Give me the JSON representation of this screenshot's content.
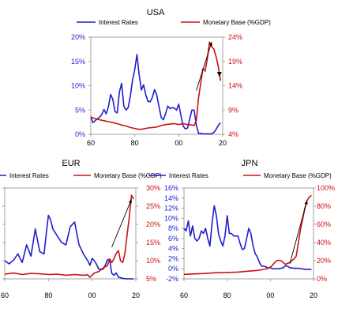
{
  "chart_data": [
    {
      "type": "line",
      "title": "USA",
      "legend_position": "top",
      "legend": [
        "Interest Rates",
        "Monetary Base (%GDP)"
      ],
      "x_ticks": [
        "60",
        "80",
        "00",
        "20"
      ],
      "x_range": [
        1960,
        2020
      ],
      "left_axis": {
        "ticks": [
          "0%",
          "5%",
          "10%",
          "15%",
          "20%"
        ],
        "range": [
          0,
          20
        ],
        "color": "#1f1fcc"
      },
      "right_axis": {
        "ticks": [
          "4%",
          "9%",
          "14%",
          "19%",
          "24%"
        ],
        "range": [
          4,
          24
        ],
        "color": "#cc1111"
      },
      "series": [
        {
          "name": "Interest Rates",
          "axis": "left",
          "color": "#1f1fcc",
          "points": [
            [
              1960,
              3.5
            ],
            [
              1961,
              2.4
            ],
            [
              1962,
              2.8
            ],
            [
              1963,
              3.2
            ],
            [
              1964,
              3.5
            ],
            [
              1965,
              4.1
            ],
            [
              1966,
              5.1
            ],
            [
              1967,
              4.2
            ],
            [
              1968,
              5.7
            ],
            [
              1969,
              8.2
            ],
            [
              1970,
              7.2
            ],
            [
              1971,
              4.7
            ],
            [
              1972,
              4.4
            ],
            [
              1973,
              8.7
            ],
            [
              1974,
              10.5
            ],
            [
              1975,
              5.8
            ],
            [
              1976,
              5.0
            ],
            [
              1977,
              5.5
            ],
            [
              1978,
              7.9
            ],
            [
              1979,
              11.2
            ],
            [
              1980,
              13.4
            ],
            [
              1981,
              16.4
            ],
            [
              1982,
              12.3
            ],
            [
              1983,
              9.1
            ],
            [
              1984,
              10.2
            ],
            [
              1985,
              8.1
            ],
            [
              1986,
              6.8
            ],
            [
              1987,
              6.7
            ],
            [
              1988,
              7.6
            ],
            [
              1989,
              9.2
            ],
            [
              1990,
              8.1
            ],
            [
              1991,
              5.7
            ],
            [
              1992,
              3.5
            ],
            [
              1993,
              3.0
            ],
            [
              1994,
              4.2
            ],
            [
              1995,
              5.8
            ],
            [
              1996,
              5.3
            ],
            [
              1997,
              5.5
            ],
            [
              1998,
              5.4
            ],
            [
              1999,
              5.0
            ],
            [
              2000,
              6.2
            ],
            [
              2001,
              3.9
            ],
            [
              2002,
              1.7
            ],
            [
              2003,
              1.1
            ],
            [
              2004,
              1.3
            ],
            [
              2005,
              3.2
            ],
            [
              2006,
              5.0
            ],
            [
              2007,
              5.0
            ],
            [
              2008,
              1.9
            ],
            [
              2009,
              0.2
            ],
            [
              2010,
              0.2
            ],
            [
              2011,
              0.1
            ],
            [
              2012,
              0.1
            ],
            [
              2013,
              0.1
            ],
            [
              2014,
              0.1
            ],
            [
              2015,
              0.1
            ],
            [
              2016,
              0.4
            ],
            [
              2017,
              1.0
            ],
            [
              2018,
              1.8
            ],
            [
              2019,
              2.4
            ]
          ]
        },
        {
          "name": "Monetary Base (%GDP)",
          "axis": "right",
          "color": "#cc1111",
          "points": [
            [
              1960,
              7.6
            ],
            [
              1962,
              7.2
            ],
            [
              1964,
              7.0
            ],
            [
              1966,
              6.8
            ],
            [
              1968,
              6.6
            ],
            [
              1970,
              6.4
            ],
            [
              1972,
              6.2
            ],
            [
              1974,
              5.9
            ],
            [
              1976,
              5.7
            ],
            [
              1978,
              5.4
            ],
            [
              1980,
              5.2
            ],
            [
              1982,
              5.0
            ],
            [
              1984,
              5.1
            ],
            [
              1986,
              5.3
            ],
            [
              1988,
              5.4
            ],
            [
              1990,
              5.5
            ],
            [
              1992,
              5.8
            ],
            [
              1994,
              6.0
            ],
            [
              1996,
              6.1
            ],
            [
              1998,
              6.2
            ],
            [
              2000,
              6.0
            ],
            [
              2002,
              6.2
            ],
            [
              2004,
              6.0
            ],
            [
              2006,
              5.9
            ],
            [
              2007,
              5.8
            ],
            [
              2008,
              6.8
            ],
            [
              2009,
              11.5
            ],
            [
              2010,
              14.5
            ],
            [
              2011,
              17.5
            ],
            [
              2012,
              17.0
            ],
            [
              2013,
              19.5
            ],
            [
              2014,
              23.0
            ],
            [
              2015,
              22.0
            ],
            [
              2016,
              21.5
            ],
            [
              2017,
              20.0
            ],
            [
              2018,
              18.0
            ],
            [
              2019,
              15.0
            ]
          ]
        }
      ]
    },
    {
      "type": "line",
      "title": "EUR",
      "legend_position": "top",
      "legend": [
        "Interest Rates",
        "Monetary Base (%GDP)"
      ],
      "x_ticks": [
        "60",
        "80",
        "00",
        "20"
      ],
      "x_range": [
        1960,
        2020
      ],
      "left_axis": {
        "ticks": [],
        "range": [
          0,
          20
        ],
        "color": "#1f1fcc"
      },
      "right_axis": {
        "ticks": [
          "5%",
          "10%",
          "15%",
          "20%",
          "25%",
          "30%"
        ],
        "range": [
          5,
          30
        ],
        "color": "#cc1111"
      },
      "series": [
        {
          "name": "Interest Rates",
          "axis": "left",
          "color": "#1f1fcc",
          "points": [
            [
              1960,
              4.0
            ],
            [
              1962,
              3.3
            ],
            [
              1964,
              4.1
            ],
            [
              1966,
              5.5
            ],
            [
              1968,
              3.6
            ],
            [
              1970,
              7.5
            ],
            [
              1972,
              5.0
            ],
            [
              1974,
              11.0
            ],
            [
              1976,
              6.0
            ],
            [
              1978,
              5.5
            ],
            [
              1979,
              10.0
            ],
            [
              1980,
              14.0
            ],
            [
              1981,
              13.0
            ],
            [
              1982,
              11.0
            ],
            [
              1984,
              9.5
            ],
            [
              1986,
              8.0
            ],
            [
              1988,
              7.5
            ],
            [
              1990,
              11.5
            ],
            [
              1992,
              12.5
            ],
            [
              1993,
              10.0
            ],
            [
              1994,
              7.5
            ],
            [
              1996,
              5.5
            ],
            [
              1998,
              4.0
            ],
            [
              1999,
              3.0
            ],
            [
              2000,
              4.5
            ],
            [
              2001,
              4.0
            ],
            [
              2002,
              3.2
            ],
            [
              2003,
              2.2
            ],
            [
              2005,
              2.1
            ],
            [
              2006,
              3.0
            ],
            [
              2007,
              4.2
            ],
            [
              2008,
              4.3
            ],
            [
              2009,
              1.2
            ],
            [
              2010,
              0.8
            ],
            [
              2011,
              1.3
            ],
            [
              2012,
              0.4
            ],
            [
              2014,
              0.1
            ],
            [
              2016,
              0.0
            ],
            [
              2018,
              0.0
            ],
            [
              2019,
              0.0
            ]
          ]
        },
        {
          "name": "Monetary Base (%GDP)",
          "axis": "right",
          "color": "#cc1111",
          "points": [
            [
              1960,
              6.3
            ],
            [
              1964,
              6.6
            ],
            [
              1968,
              6.2
            ],
            [
              1972,
              6.5
            ],
            [
              1976,
              6.4
            ],
            [
              1980,
              6.2
            ],
            [
              1984,
              6.3
            ],
            [
              1988,
              6.0
            ],
            [
              1992,
              6.2
            ],
            [
              1996,
              6.0
            ],
            [
              1998,
              6.1
            ],
            [
              1999,
              5.4
            ],
            [
              2001,
              6.6
            ],
            [
              2003,
              7.0
            ],
            [
              2005,
              8.0
            ],
            [
              2007,
              8.6
            ],
            [
              2008,
              10.5
            ],
            [
              2009,
              9.5
            ],
            [
              2010,
              10.5
            ],
            [
              2011,
              12.0
            ],
            [
              2012,
              12.8
            ],
            [
              2013,
              10.0
            ],
            [
              2014,
              9.5
            ],
            [
              2015,
              12.0
            ],
            [
              2016,
              17.0
            ],
            [
              2017,
              22.0
            ],
            [
              2018,
              28.0
            ],
            [
              2019,
              27.0
            ]
          ]
        }
      ]
    },
    {
      "type": "line",
      "title": "JPN",
      "legend_position": "top",
      "legend": [
        "Interest Rates",
        "Monetary Base (%GDP)"
      ],
      "x_ticks": [
        "60",
        "80",
        "00",
        "20"
      ],
      "x_range": [
        1960,
        2020
      ],
      "left_axis": {
        "ticks": [
          "-2%",
          "0%",
          "2%",
          "4%",
          "6%",
          "8%",
          "10%",
          "12%",
          "14%",
          "16%"
        ],
        "range": [
          -2,
          16
        ],
        "color": "#1f1fcc"
      },
      "right_axis": {
        "ticks": [
          "0%",
          "20%",
          "40%",
          "60%",
          "80%",
          "100%"
        ],
        "range": [
          0,
          100
        ],
        "color": "#cc1111"
      },
      "series": [
        {
          "name": "Interest Rates",
          "axis": "left",
          "color": "#1f1fcc",
          "points": [
            [
              1960,
              8.0
            ],
            [
              1961,
              7.5
            ],
            [
              1962,
              9.5
            ],
            [
              1963,
              6.5
            ],
            [
              1964,
              8.5
            ],
            [
              1965,
              6.0
            ],
            [
              1966,
              5.5
            ],
            [
              1967,
              6.0
            ],
            [
              1968,
              7.5
            ],
            [
              1969,
              7.0
            ],
            [
              1970,
              8.0
            ],
            [
              1971,
              6.0
            ],
            [
              1972,
              4.5
            ],
            [
              1973,
              9.0
            ],
            [
              1974,
              12.5
            ],
            [
              1975,
              10.5
            ],
            [
              1976,
              7.0
            ],
            [
              1977,
              5.5
            ],
            [
              1978,
              4.5
            ],
            [
              1979,
              6.5
            ],
            [
              1980,
              10.5
            ],
            [
              1981,
              7.0
            ],
            [
              1982,
              7.0
            ],
            [
              1983,
              6.5
            ],
            [
              1984,
              6.5
            ],
            [
              1985,
              6.5
            ],
            [
              1986,
              5.0
            ],
            [
              1987,
              3.8
            ],
            [
              1988,
              4.0
            ],
            [
              1989,
              6.0
            ],
            [
              1990,
              8.0
            ],
            [
              1991,
              7.0
            ],
            [
              1992,
              4.5
            ],
            [
              1993,
              3.0
            ],
            [
              1994,
              2.3
            ],
            [
              1995,
              1.2
            ],
            [
              1996,
              0.5
            ],
            [
              1997,
              0.5
            ],
            [
              1998,
              0.4
            ],
            [
              1999,
              0.1
            ],
            [
              2000,
              0.2
            ],
            [
              2001,
              0.0
            ],
            [
              2002,
              0.0
            ],
            [
              2004,
              0.0
            ],
            [
              2006,
              0.2
            ],
            [
              2007,
              0.6
            ],
            [
              2008,
              0.5
            ],
            [
              2009,
              0.2
            ],
            [
              2011,
              0.1
            ],
            [
              2013,
              0.1
            ],
            [
              2016,
              -0.1
            ],
            [
              2019,
              -0.1
            ]
          ]
        },
        {
          "name": "Monetary Base (%GDP)",
          "axis": "right",
          "color": "#cc1111",
          "points": [
            [
              1960,
              5.0
            ],
            [
              1965,
              5.5
            ],
            [
              1970,
              6.0
            ],
            [
              1975,
              6.8
            ],
            [
              1980,
              7.0
            ],
            [
              1985,
              7.5
            ],
            [
              1990,
              8.5
            ],
            [
              1993,
              9.0
            ],
            [
              1996,
              10.0
            ],
            [
              1998,
              11.0
            ],
            [
              2000,
              13.0
            ],
            [
              2001,
              15.0
            ],
            [
              2002,
              18.0
            ],
            [
              2003,
              20.0
            ],
            [
              2004,
              20.5
            ],
            [
              2005,
              20.0
            ],
            [
              2006,
              18.0
            ],
            [
              2007,
              16.0
            ],
            [
              2008,
              17.0
            ],
            [
              2009,
              18.0
            ],
            [
              2010,
              20.0
            ],
            [
              2011,
              22.0
            ],
            [
              2012,
              25.0
            ],
            [
              2013,
              40.0
            ],
            [
              2014,
              55.0
            ],
            [
              2015,
              66.0
            ],
            [
              2016,
              78.0
            ],
            [
              2017,
              86.0
            ],
            [
              2018,
              90.0
            ],
            [
              2019,
              92.0
            ]
          ]
        }
      ]
    }
  ]
}
